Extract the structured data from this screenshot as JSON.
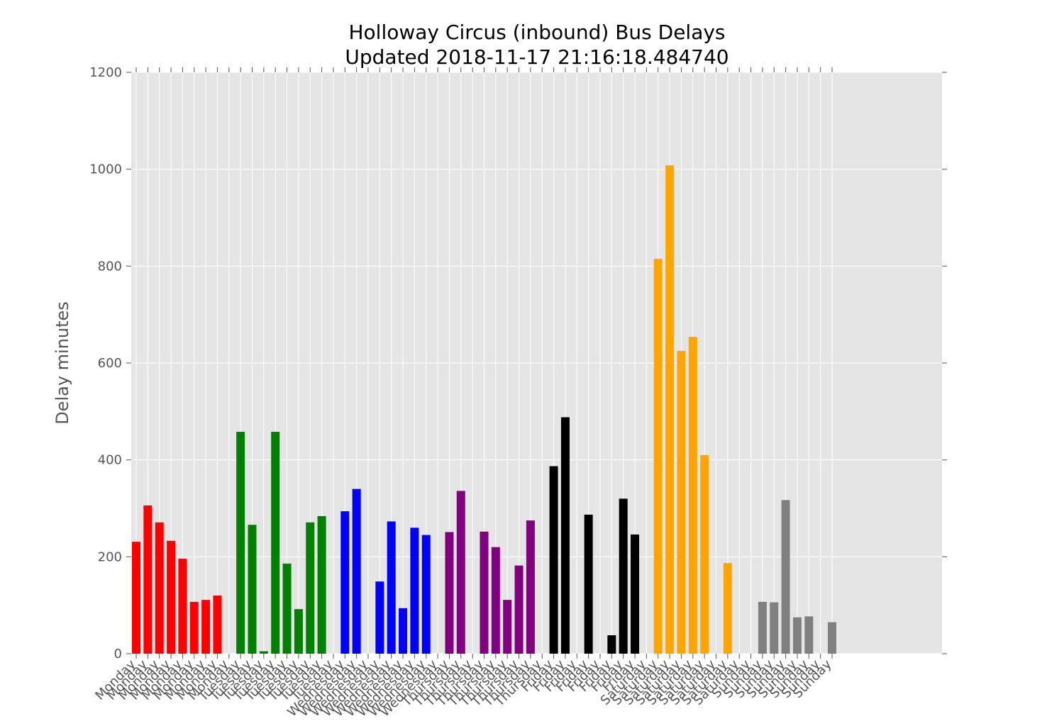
{
  "chart_data": {
    "type": "bar",
    "title": "Holloway Circus (inbound) Bus Delays",
    "subtitle": "Updated 2018-11-17 21:16:18.484740",
    "xlabel": "",
    "ylabel": "Delay minutes",
    "ylim": [
      0,
      1200
    ],
    "yticks": [
      0,
      200,
      400,
      600,
      800,
      1000,
      1200
    ],
    "grid": true,
    "categories": [
      "Monday",
      "Monday",
      "Monday",
      "Monday",
      "Monday",
      "Monday",
      "Monday",
      "Monday",
      "Monday",
      "Tuesday",
      "Tuesday",
      "Tuesday",
      "Tuesday",
      "Tuesday",
      "Tuesday",
      "Tuesday",
      "Tuesday",
      "Tuesday",
      "Wednesday",
      "Wednesday",
      "Wednesday",
      "Wednesday",
      "Wednesday",
      "Wednesday",
      "Wednesday",
      "Wednesday",
      "Wednesday",
      "Thursday",
      "Thursday",
      "Thursday",
      "Thursday",
      "Thursday",
      "Thursday",
      "Thursday",
      "Thursday",
      "Thursday",
      "Friday",
      "Friday",
      "Friday",
      "Friday",
      "Friday",
      "Friday",
      "Friday",
      "Friday",
      "Saturday",
      "Saturday",
      "Saturday",
      "Saturday",
      "Saturday",
      "Saturday",
      "Saturday",
      "Saturday",
      "Saturday",
      "Sunday",
      "Sunday",
      "Sunday",
      "Sunday",
      "Sunday",
      "Sunday",
      "Sunday",
      "Sunday"
    ],
    "values": [
      231,
      306,
      271,
      233,
      196,
      107,
      111,
      120,
      0,
      458,
      266,
      5,
      458,
      186,
      92,
      271,
      284,
      0,
      294,
      340,
      0,
      149,
      273,
      94,
      260,
      245,
      0,
      251,
      336,
      0,
      252,
      220,
      111,
      182,
      275,
      0,
      387,
      488,
      0,
      287,
      0,
      38,
      320,
      246,
      0,
      815,
      1008,
      625,
      654,
      410,
      0,
      187,
      0,
      0,
      107,
      106,
      317,
      75,
      77,
      0,
      65
    ],
    "colors": [
      "#ff0000",
      "#ff0000",
      "#ff0000",
      "#ff0000",
      "#ff0000",
      "#ff0000",
      "#ff0000",
      "#ff0000",
      "#ff0000",
      "#008000",
      "#008000",
      "#008000",
      "#008000",
      "#008000",
      "#008000",
      "#008000",
      "#008000",
      "#008000",
      "#0000ff",
      "#0000ff",
      "#0000ff",
      "#0000ff",
      "#0000ff",
      "#0000ff",
      "#0000ff",
      "#0000ff",
      "#0000ff",
      "#800080",
      "#800080",
      "#800080",
      "#800080",
      "#800080",
      "#800080",
      "#800080",
      "#800080",
      "#800080",
      "#000000",
      "#000000",
      "#000000",
      "#000000",
      "#000000",
      "#000000",
      "#000000",
      "#000000",
      "#ffa500",
      "#ffa500",
      "#ffa500",
      "#ffa500",
      "#ffa500",
      "#ffa500",
      "#ffa500",
      "#ffa500",
      "#ffa500",
      "#808080",
      "#808080",
      "#808080",
      "#808080",
      "#808080",
      "#808080",
      "#808080",
      "#808080"
    ],
    "plot_background": "#e5e5e5",
    "grid_color": "#ffffff"
  }
}
